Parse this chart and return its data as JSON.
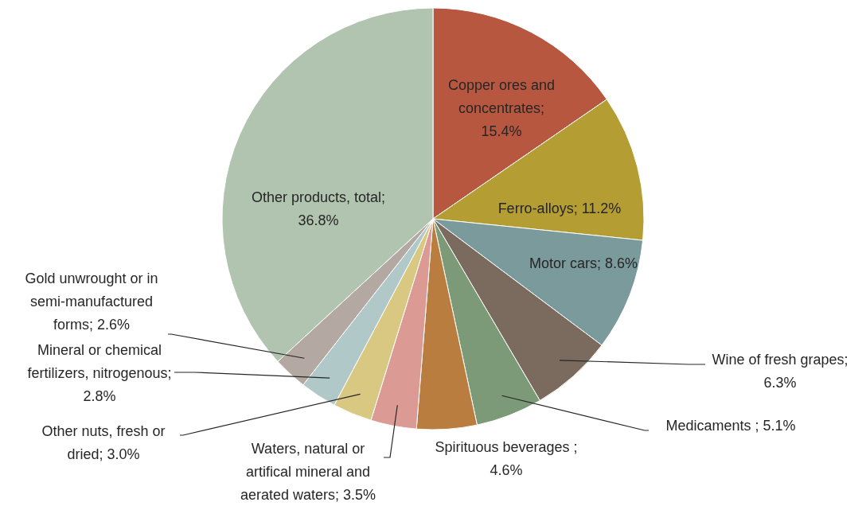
{
  "chart_data": {
    "type": "pie",
    "categories": [
      "Copper ores and concentrates; 15.4%",
      "Ferro-alloys; 11.2%",
      "Motor cars; 8.6%",
      "Wine of fresh grapes; 6.3%",
      "Medicaments ; 5.1%",
      "Spirituous beverages ; 4.6%",
      "Waters, natural or artifical mineral and aerated waters; 3.5%",
      "Other nuts, fresh or dried; 3.0%",
      "Mineral or chemical fertilizers, nitrogenous; 2.8%",
      "Gold unwrought or in semi-manufactured forms; 2.6%",
      "Other products, total; 36.8%"
    ],
    "values": [
      15.4,
      11.2,
      8.6,
      6.3,
      5.1,
      4.6,
      3.5,
      3.0,
      2.8,
      2.6,
      36.8
    ],
    "colors": [
      "#b85740",
      "#b49d33",
      "#7a9a9b",
      "#7b6b5f",
      "#7d9a78",
      "#b97d3f",
      "#db9b94",
      "#d9c882",
      "#b0c8c8",
      "#b3a8a2",
      "#b1c4b0"
    ]
  }
}
